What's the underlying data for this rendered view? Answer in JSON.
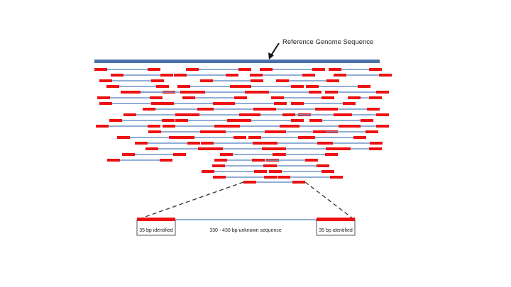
{
  "reference_label": "Reference Genome Sequence",
  "detail": {
    "left_box_label": "35 bp identified",
    "middle_label": "330 - 430 bp unknown sequence",
    "right_box_label": "35 bp identified"
  },
  "colors": {
    "reference": "#4a72a8",
    "insert_line": "#6f93c8",
    "read_end": "#ee1111",
    "box_border": "#555555",
    "dashed": "#333333"
  }
}
